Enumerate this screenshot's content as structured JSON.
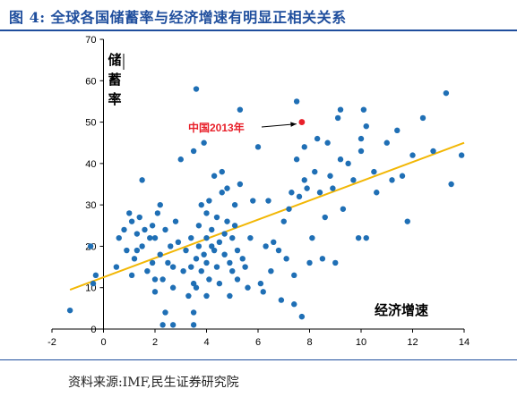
{
  "figure": {
    "title": "图 4:  全球各国储蓄率与经济增速有明显正相关关系",
    "source": "资料来源:IMF,民生证券研究院"
  },
  "chart_data": {
    "type": "scatter",
    "xlabel": "经济增速",
    "ylabel": "储蓄率",
    "xlim": [
      -2,
      14
    ],
    "ylim": [
      0,
      70
    ],
    "xticks": [
      -2,
      0,
      2,
      4,
      6,
      8,
      10,
      12,
      14
    ],
    "yticks": [
      0,
      10,
      20,
      30,
      40,
      50,
      60,
      70
    ],
    "grid": false,
    "colors": {
      "points": "#1f6fb5",
      "highlight": "#e8202a",
      "trend": "#f2b705",
      "axis": "#000000"
    },
    "trendline": {
      "x1": -1.3,
      "y1": 9.5,
      "x2": 14,
      "y2": 45
    },
    "annotation": {
      "label": "中国2013年",
      "x": 7.7,
      "y": 50
    },
    "points": [
      [
        -1.3,
        4.5
      ],
      [
        -0.5,
        20
      ],
      [
        -0.4,
        11
      ],
      [
        -0.3,
        13
      ],
      [
        0.5,
        15
      ],
      [
        0.6,
        22
      ],
      [
        0.8,
        24
      ],
      [
        0.9,
        19
      ],
      [
        1,
        28
      ],
      [
        1.1,
        13
      ],
      [
        1.1,
        26
      ],
      [
        1.2,
        17
      ],
      [
        1.3,
        23
      ],
      [
        1.3,
        19
      ],
      [
        1.4,
        27
      ],
      [
        1.5,
        36
      ],
      [
        1.5,
        20
      ],
      [
        1.6,
        24
      ],
      [
        1.7,
        14
      ],
      [
        1.8,
        22
      ],
      [
        1.9,
        25
      ],
      [
        1.9,
        16
      ],
      [
        2,
        9
      ],
      [
        2,
        12
      ],
      [
        2,
        22
      ],
      [
        2.1,
        28
      ],
      [
        2.2,
        18
      ],
      [
        2.2,
        30
      ],
      [
        2.3,
        12
      ],
      [
        2.3,
        1
      ],
      [
        2.4,
        4
      ],
      [
        2.4,
        24
      ],
      [
        2.5,
        16
      ],
      [
        2.6,
        20
      ],
      [
        2.7,
        10
      ],
      [
        2.7,
        15
      ],
      [
        2.7,
        1
      ],
      [
        2.8,
        26
      ],
      [
        2.9,
        21
      ],
      [
        3,
        41
      ],
      [
        3.1,
        14
      ],
      [
        3.2,
        19
      ],
      [
        3.3,
        8
      ],
      [
        3.4,
        22
      ],
      [
        3.4,
        15
      ],
      [
        3.5,
        4
      ],
      [
        3.5,
        11
      ],
      [
        3.5,
        1
      ],
      [
        3.6,
        58
      ],
      [
        3.5,
        43
      ],
      [
        3.6,
        17
      ],
      [
        3.6,
        10
      ],
      [
        3.7,
        25
      ],
      [
        3.7,
        20
      ],
      [
        3.8,
        14
      ],
      [
        3.8,
        30
      ],
      [
        3.9,
        45
      ],
      [
        3.9,
        18
      ],
      [
        4,
        28
      ],
      [
        4,
        22
      ],
      [
        4,
        8
      ],
      [
        4,
        16
      ],
      [
        4.1,
        31
      ],
      [
        4.1,
        12
      ],
      [
        4.2,
        24
      ],
      [
        4.2,
        20
      ],
      [
        4.3,
        37
      ],
      [
        4.3,
        19
      ],
      [
        4.4,
        15
      ],
      [
        4.4,
        27
      ],
      [
        4.5,
        21
      ],
      [
        4.5,
        11
      ],
      [
        4.6,
        33
      ],
      [
        4.6,
        38
      ],
      [
        4.7,
        18
      ],
      [
        4.7,
        23
      ],
      [
        4.8,
        26
      ],
      [
        4.8,
        34
      ],
      [
        4.9,
        8
      ],
      [
        4.9,
        16
      ],
      [
        5,
        14
      ],
      [
        5,
        22
      ],
      [
        5.1,
        25
      ],
      [
        5.1,
        30
      ],
      [
        5.2,
        19
      ],
      [
        5.2,
        12
      ],
      [
        5.3,
        53
      ],
      [
        5.3,
        35
      ],
      [
        5.4,
        17
      ],
      [
        5.5,
        15
      ],
      [
        5.6,
        10
      ],
      [
        5.7,
        22
      ],
      [
        5.8,
        31
      ],
      [
        6,
        44
      ],
      [
        6.1,
        11
      ],
      [
        6.2,
        9
      ],
      [
        6.3,
        20
      ],
      [
        6.4,
        31
      ],
      [
        6.5,
        14
      ],
      [
        6.6,
        21
      ],
      [
        6.8,
        19
      ],
      [
        6.9,
        7
      ],
      [
        7.0,
        26
      ],
      [
        7.1,
        17
      ],
      [
        7.2,
        29
      ],
      [
        7.3,
        33
      ],
      [
        7.4,
        13
      ],
      [
        7.4,
        6
      ],
      [
        7.5,
        55
      ],
      [
        7.5,
        41
      ],
      [
        7.6,
        32
      ],
      [
        7.7,
        3
      ],
      [
        7.8,
        44
      ],
      [
        7.8,
        36
      ],
      [
        7.9,
        34
      ],
      [
        8,
        16
      ],
      [
        8.1,
        22
      ],
      [
        8.2,
        38
      ],
      [
        8.3,
        46
      ],
      [
        8.4,
        33
      ],
      [
        8.5,
        17
      ],
      [
        8.6,
        27
      ],
      [
        8.7,
        45
      ],
      [
        8.8,
        37
      ],
      [
        8.9,
        34
      ],
      [
        9,
        16
      ],
      [
        9.1,
        51
      ],
      [
        9.2,
        41
      ],
      [
        9.2,
        53
      ],
      [
        9.3,
        29
      ],
      [
        9.5,
        40
      ],
      [
        9.7,
        36
      ],
      [
        9.9,
        22
      ],
      [
        10,
        46
      ],
      [
        10,
        43
      ],
      [
        10.1,
        53
      ],
      [
        10.2,
        22
      ],
      [
        10.2,
        49
      ],
      [
        10.5,
        38
      ],
      [
        10.6,
        33
      ],
      [
        11,
        45
      ],
      [
        11.2,
        36
      ],
      [
        11.4,
        48
      ],
      [
        11.6,
        37
      ],
      [
        11.8,
        26
      ],
      [
        12,
        42
      ],
      [
        12.4,
        51
      ],
      [
        12.8,
        43
      ],
      [
        13.3,
        57
      ],
      [
        13.5,
        35
      ],
      [
        13.9,
        42
      ]
    ]
  }
}
